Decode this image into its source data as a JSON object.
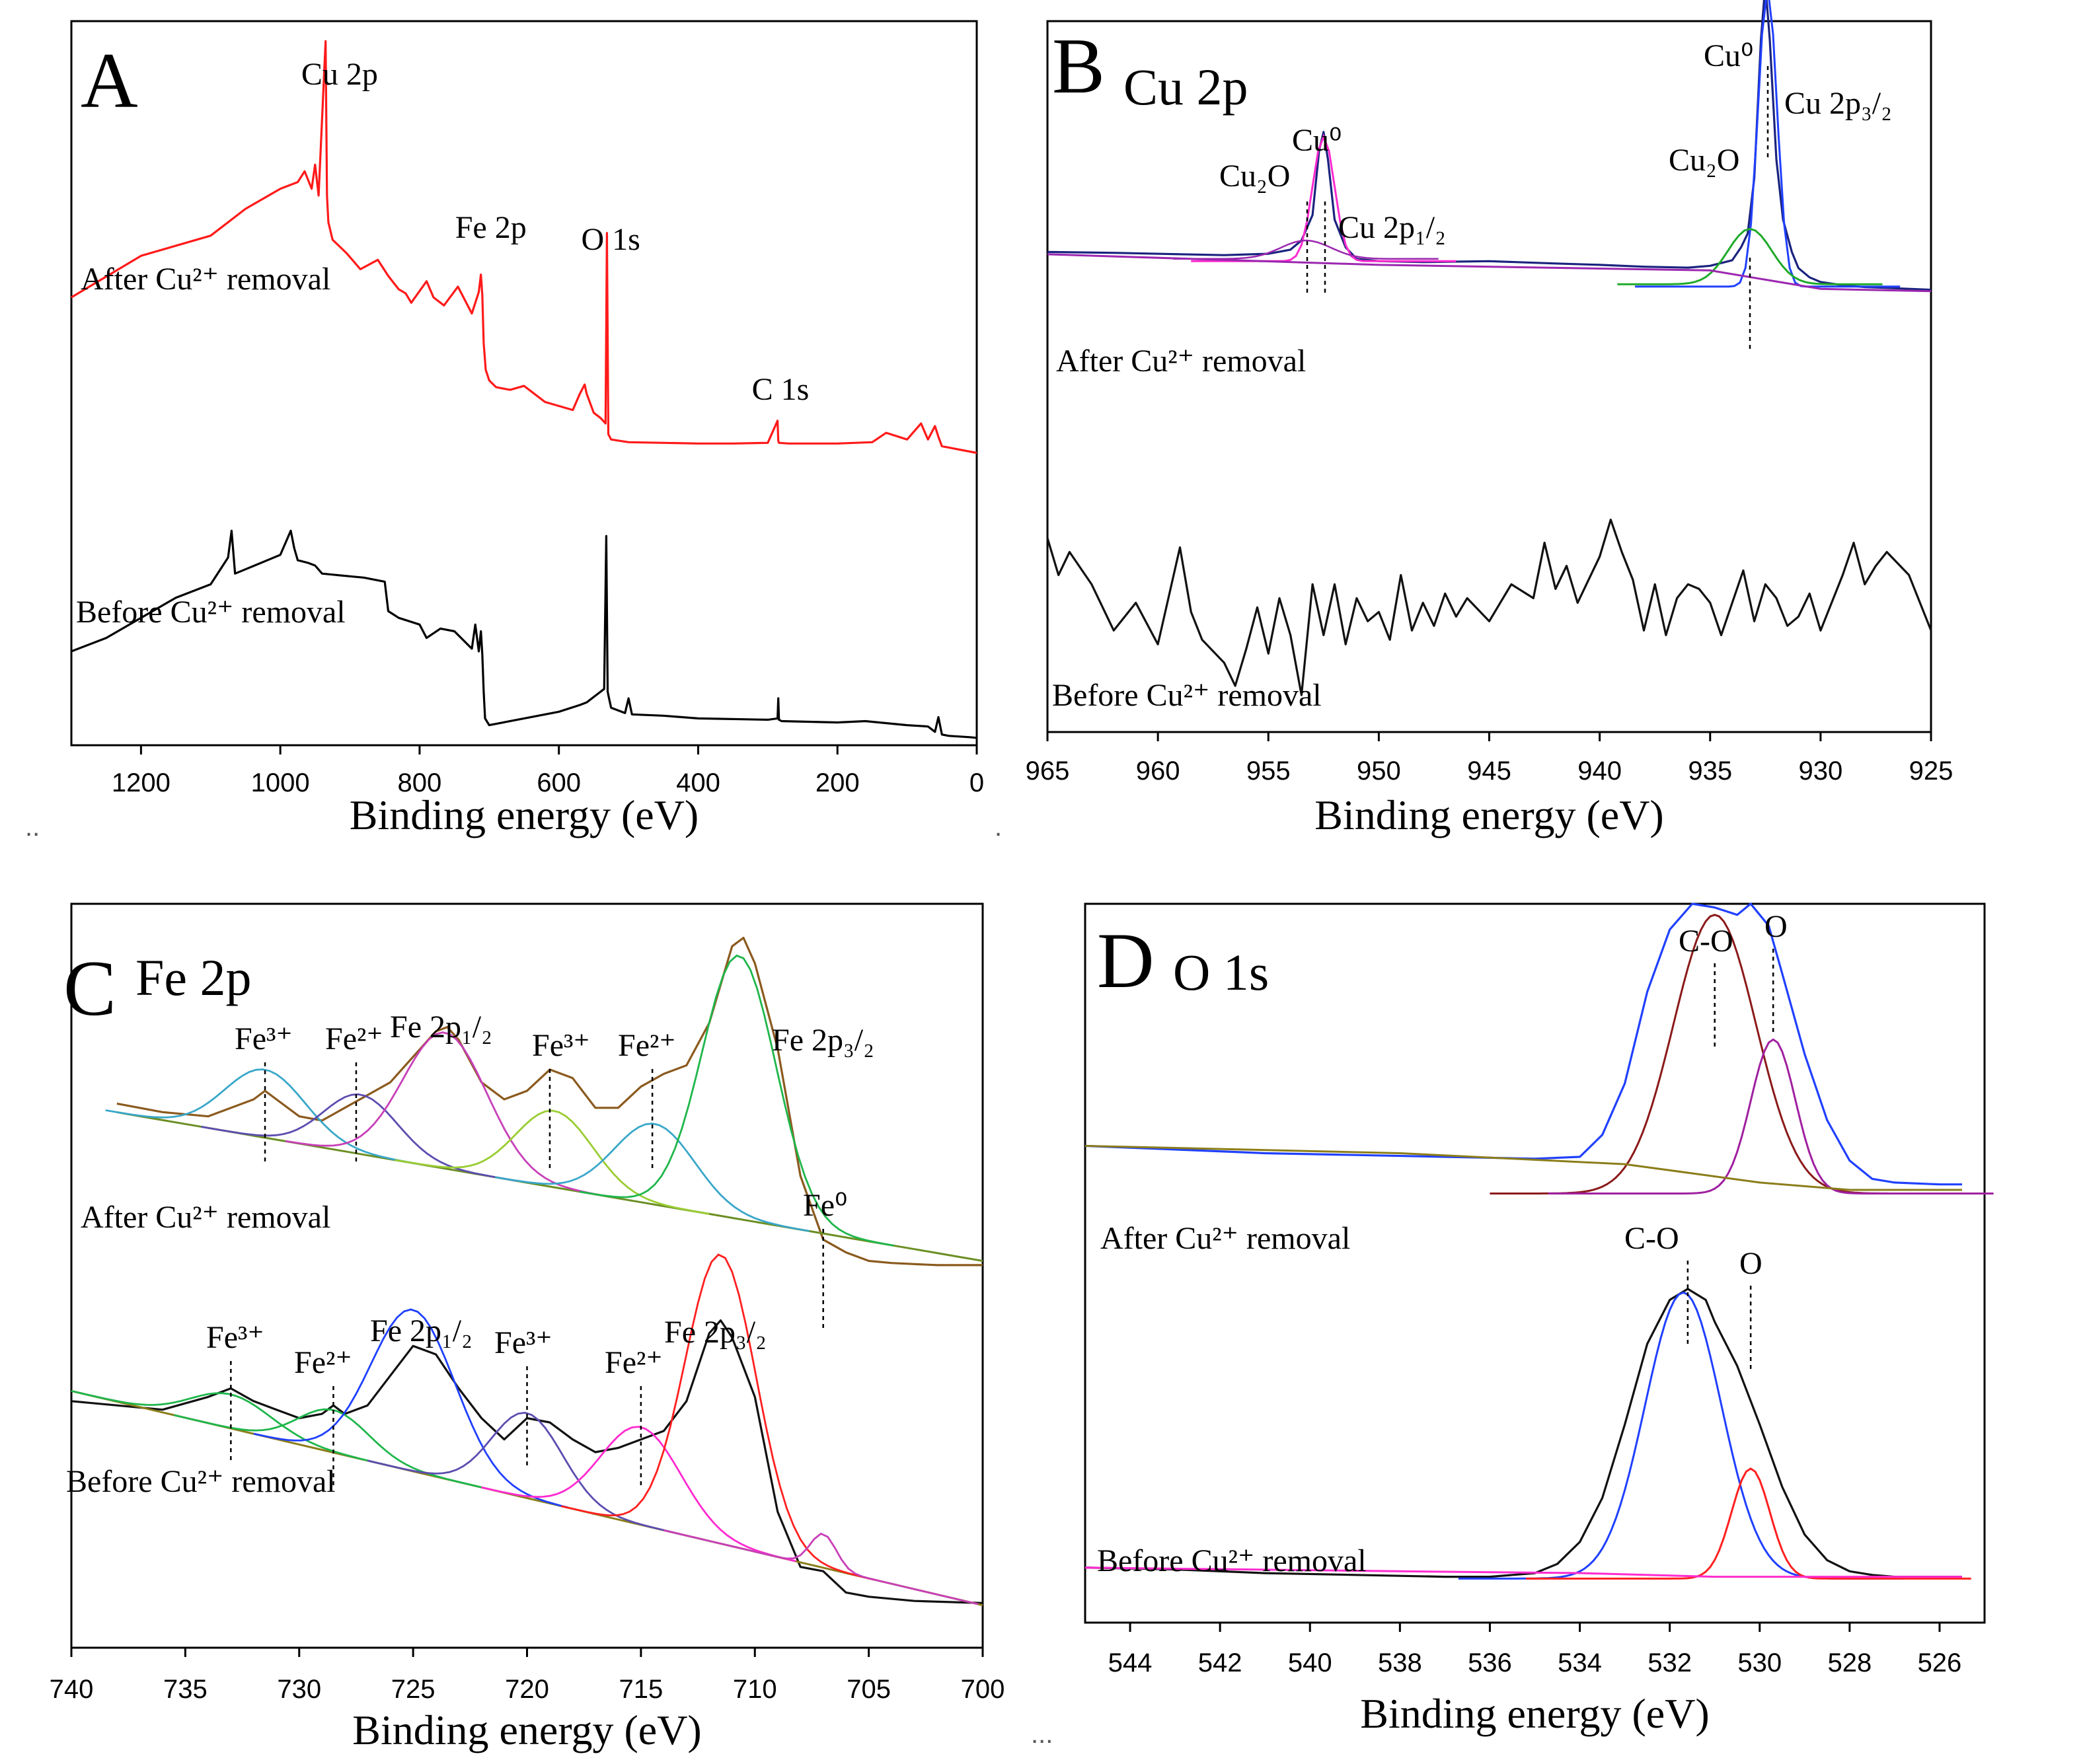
{
  "stray_marks": [
    "..",
    ".",
    "..."
  ],
  "chart_data": [
    {
      "panel": "A",
      "type": "line",
      "title": "",
      "xlabel": "Binding energy (eV)",
      "ylabel": "",
      "xlim": [
        1300,
        0
      ],
      "x_reversed": true,
      "xticks": [
        1200,
        1000,
        800,
        600,
        400,
        200,
        0
      ],
      "annotations": [
        {
          "text": "Cu 2p",
          "x": 932
        },
        {
          "text": "Fe 2p",
          "x": 711
        },
        {
          "text": "O 1s",
          "x": 530
        },
        {
          "text": "C 1s",
          "x": 285
        }
      ],
      "series": [
        {
          "name": "After Cu²⁺ removal",
          "color": "#ff1a1a",
          "x": [
            1300,
            1200,
            1100,
            1050,
            1000,
            975,
            965,
            955,
            950,
            945,
            935,
            933,
            931,
            925,
            905,
            885,
            860,
            845,
            830,
            820,
            812,
            790,
            780,
            765,
            745,
            725,
            715,
            712,
            710,
            708,
            705,
            700,
            690,
            670,
            650,
            640,
            620,
            600,
            580,
            570,
            563,
            560,
            550,
            540,
            533,
            531,
            529,
            525,
            500,
            450,
            400,
            350,
            300,
            286,
            285,
            284,
            270,
            200,
            150,
            130,
            100,
            80,
            70,
            60,
            55,
            50,
            40,
            20,
            10,
            0
          ],
          "y": [
            1540,
            1850,
            2000,
            2200,
            2350,
            2400,
            2480,
            2350,
            2530,
            2300,
            3450,
            2300,
            2100,
            1970,
            1870,
            1750,
            1820,
            1700,
            1600,
            1570,
            1500,
            1660,
            1540,
            1480,
            1620,
            1420,
            1580,
            1710,
            1560,
            1200,
            1000,
            920,
            870,
            850,
            880,
            840,
            760,
            730,
            700,
            820,
            890,
            820,
            680,
            640,
            600,
            2020,
            520,
            480,
            460,
            455,
            450,
            450,
            455,
            620,
            470,
            455,
            450,
            450,
            460,
            530,
            480,
            600,
            480,
            580,
            500,
            430,
            420,
            400,
            390,
            380
          ]
        },
        {
          "name": "Before Cu²⁺ removal",
          "color": "#000000",
          "x": [
            1300,
            1250,
            1150,
            1100,
            1075,
            1070,
            1065,
            1000,
            985,
            980,
            975,
            960,
            950,
            940,
            900,
            880,
            850,
            845,
            830,
            800,
            790,
            770,
            750,
            725,
            720,
            715,
            712,
            710,
            708,
            706,
            700,
            650,
            600,
            570,
            560,
            545,
            535,
            532,
            530,
            528,
            525,
            505,
            500,
            495,
            450,
            400,
            300,
            286,
            285,
            284,
            280,
            200,
            160,
            100,
            70,
            60,
            55,
            50,
            40,
            10,
            0
          ],
          "y": [
            -1100,
            -1000,
            -700,
            -600,
            -400,
            -200,
            -520,
            -380,
            -200,
            -330,
            -420,
            -440,
            -460,
            -520,
            -540,
            -550,
            -580,
            -800,
            -850,
            -900,
            -1000,
            -930,
            -950,
            -1080,
            -900,
            -1100,
            -950,
            -1120,
            -1400,
            -1600,
            -1650,
            -1600,
            -1550,
            -1500,
            -1480,
            -1420,
            -1380,
            -240,
            -1400,
            -1450,
            -1520,
            -1560,
            -1450,
            -1570,
            -1580,
            -1600,
            -1610,
            -1600,
            -1450,
            -1610,
            -1620,
            -1630,
            -1620,
            -1650,
            -1660,
            -1700,
            -1590,
            -1720,
            -1730,
            -1740,
            -1745
          ]
        }
      ]
    },
    {
      "panel": "B",
      "type": "line",
      "title": "Cu 2p",
      "xlabel": "Binding energy (eV)",
      "ylabel": "",
      "xlim": [
        965,
        925
      ],
      "x_reversed": true,
      "xticks": [
        965,
        960,
        955,
        950,
        945,
        940,
        935,
        930,
        925
      ],
      "annotations": [
        {
          "text": "Cu₂O",
          "x": 953.4
        },
        {
          "text": "Cu⁰",
          "x": 952.5
        },
        {
          "text": "Cu 2p₁/₂",
          "x": 951
        },
        {
          "text": "Cu₂O",
          "x": 933.4
        },
        {
          "text": "Cu⁰",
          "x": 932.4
        },
        {
          "text": "Cu 2p₃/₂",
          "x": 931
        }
      ],
      "series": [
        {
          "name": "After Cu²⁺ removal",
          "color": "#1a237e",
          "x": [
            965,
            962,
            959,
            957,
            955,
            954,
            953.5,
            953,
            952.7,
            952.5,
            952.3,
            952,
            951.5,
            951,
            950,
            948,
            945,
            942,
            940,
            938,
            936,
            935,
            934,
            933.6,
            933.3,
            933,
            932.7,
            932.5,
            932.3,
            932,
            931.7,
            931.3,
            931,
            930.5,
            930,
            929,
            928,
            927,
            926,
            925
          ],
          "y": [
            100,
            98,
            95,
            93,
            96,
            105,
            125,
            180,
            320,
            360,
            300,
            170,
            110,
            85,
            80,
            78,
            80,
            75,
            72,
            68,
            66,
            70,
            82,
            110,
            140,
            260,
            560,
            680,
            560,
            300,
            170,
            100,
            65,
            45,
            35,
            28,
            24,
            22,
            20,
            18
          ]
        },
        {
          "name": "Before Cu²⁺ removal",
          "color": "#111111",
          "x": [
            965,
            964.5,
            964,
            963,
            962,
            961,
            960,
            959,
            958.5,
            958,
            957,
            956.5,
            956,
            955.5,
            955,
            954.5,
            954,
            953.5,
            953,
            952.5,
            952,
            951.5,
            951,
            950.5,
            950,
            949.5,
            949,
            948.5,
            948,
            947.5,
            947,
            946.5,
            946,
            945,
            944,
            943,
            942.5,
            942,
            941.5,
            941,
            940,
            939.5,
            939,
            938.5,
            938,
            937.5,
            937,
            936.5,
            936,
            935.5,
            935,
            934.5,
            934,
            933.5,
            933,
            932.5,
            932,
            931.5,
            931,
            930.5,
            930,
            929,
            928.5,
            928,
            927.5,
            927,
            926,
            925
          ],
          "y": [
            -220,
            -300,
            -250,
            -320,
            -420,
            -360,
            -450,
            -240,
            -380,
            -440,
            -490,
            -540,
            -460,
            -370,
            -470,
            -350,
            -430,
            -560,
            -320,
            -430,
            -320,
            -450,
            -350,
            -400,
            -380,
            -440,
            -300,
            -420,
            -360,
            -410,
            -340,
            -390,
            -350,
            -400,
            -320,
            -350,
            -230,
            -330,
            -280,
            -360,
            -260,
            -180,
            -250,
            -310,
            -420,
            -320,
            -430,
            -350,
            -320,
            -330,
            -360,
            -430,
            -360,
            -290,
            -400,
            -320,
            -350,
            -410,
            -390,
            -340,
            -420,
            -300,
            -230,
            -320,
            -280,
            -250,
            -300,
            -420
          ]
        },
        {
          "name": "Cu⁰ 2p₃/₂ fit",
          "color": "#2040ff",
          "role": "fit"
        },
        {
          "name": "Cu₂O fit",
          "color": "#1faa2a",
          "role": "fit"
        },
        {
          "name": "Cu 2p₁/₂ fit",
          "color": "#ff2bd0",
          "role": "fit"
        },
        {
          "name": "Background",
          "color": "#9c27b0",
          "role": "fit"
        }
      ]
    },
    {
      "panel": "C",
      "type": "line",
      "title": "Fe 2p",
      "xlabel": "Binding energy (eV)",
      "ylabel": "",
      "xlim": [
        740,
        700
      ],
      "x_reversed": true,
      "xticks": [
        740,
        735,
        730,
        725,
        720,
        715,
        710,
        705,
        700
      ],
      "annotations": [
        {
          "group": "after",
          "text": "Fe³⁺",
          "x": 731.5
        },
        {
          "group": "after",
          "text": "Fe²⁺",
          "x": 727.5
        },
        {
          "group": "after",
          "text": "Fe 2p₁/₂",
          "x": 723.5
        },
        {
          "group": "after",
          "text": "Fe³⁺",
          "x": 719
        },
        {
          "group": "after",
          "text": "Fe²⁺",
          "x": 714.5
        },
        {
          "group": "after",
          "text": "Fe 2p₃/₂",
          "x": 710.5
        },
        {
          "group": "after",
          "text": "Fe⁰",
          "x": 707
        },
        {
          "group": "before",
          "text": "Fe³⁺",
          "x": 733
        },
        {
          "group": "before",
          "text": "Fe²⁺",
          "x": 728.5
        },
        {
          "group": "before",
          "text": "Fe 2p₁/₂",
          "x": 725
        },
        {
          "group": "before",
          "text": "Fe³⁺",
          "x": 720
        },
        {
          "group": "before",
          "text": "Fe²⁺",
          "x": 715
        },
        {
          "group": "before",
          "text": "Fe 2p₃/₂",
          "x": 711.5
        }
      ],
      "series": [
        {
          "name": "After Cu²⁺ removal",
          "color": "#8b5a1e",
          "x": [
            738,
            736,
            734,
            732,
            731.5,
            731,
            730,
            729,
            728,
            727,
            726,
            725,
            724,
            723.5,
            723,
            722,
            721,
            720,
            719,
            718,
            717,
            716,
            715,
            714,
            713,
            712,
            711,
            710.5,
            710,
            709,
            708,
            707,
            706,
            705,
            704,
            702,
            700
          ],
          "y": [
            1430,
            1410,
            1400,
            1440,
            1460,
            1440,
            1400,
            1390,
            1420,
            1450,
            1480,
            1540,
            1600,
            1610,
            1580,
            1480,
            1440,
            1460,
            1510,
            1490,
            1420,
            1420,
            1470,
            1500,
            1520,
            1620,
            1800,
            1820,
            1760,
            1560,
            1260,
            1110,
            1080,
            1060,
            1055,
            1050,
            1050
          ]
        },
        {
          "name": "Before Cu²⁺ removal",
          "color": "#111111",
          "x": [
            740,
            738,
            736,
            734,
            733,
            732,
            731,
            730,
            729,
            728.5,
            728,
            727,
            726,
            725,
            724,
            723,
            722,
            721,
            720,
            719,
            718,
            717,
            716,
            715,
            714,
            713,
            712,
            711.5,
            711,
            710,
            709,
            708,
            707,
            706,
            705,
            703,
            700
          ],
          "y": [
            730,
            720,
            710,
            740,
            760,
            730,
            710,
            690,
            700,
            720,
            700,
            720,
            790,
            860,
            840,
            760,
            690,
            640,
            690,
            680,
            640,
            610,
            620,
            640,
            660,
            730,
            890,
            920,
            880,
            740,
            470,
            340,
            330,
            280,
            270,
            260,
            255
          ]
        },
        {
          "name": "Fe³⁺ fit",
          "color": "#3aa7c9",
          "role": "fit"
        },
        {
          "name": "Fe²⁺ fit",
          "color": "#5c4db0",
          "role": "fit"
        },
        {
          "name": "Fe 2p₁/₂ fit",
          "color": "#c83fb8",
          "role": "fit"
        },
        {
          "name": "Fe 2p₃/₂ fit",
          "color": "#1fb64b",
          "role": "fit"
        },
        {
          "name": "Background",
          "color": "#6b8e23",
          "role": "fit"
        }
      ]
    },
    {
      "panel": "D",
      "type": "line",
      "title": "O 1s",
      "xlabel": "Binding energy (eV)",
      "ylabel": "",
      "xlim": [
        545,
        525
      ],
      "x_reversed": true,
      "xticks": [
        544,
        542,
        540,
        538,
        536,
        534,
        532,
        530,
        528,
        526
      ],
      "annotations": [
        {
          "group": "after",
          "text": "C-O",
          "x": 531
        },
        {
          "group": "after",
          "text": "O",
          "x": 529.7
        },
        {
          "group": "before",
          "text": "C-O",
          "x": 531.6
        },
        {
          "group": "before",
          "text": "O",
          "x": 530.2
        }
      ],
      "series": [
        {
          "name": "After Cu²⁺ removal",
          "color": "#2040ff",
          "x": [
            545,
            543,
            541,
            539,
            537,
            535,
            534,
            533.5,
            533,
            532.5,
            532,
            531.5,
            531,
            530.5,
            530.2,
            530,
            529.8,
            529.5,
            529,
            528.5,
            528,
            527.5,
            527,
            526,
            525.5
          ],
          "y": [
            130,
            120,
            110,
            105,
            100,
            95,
            100,
            160,
            300,
            550,
            720,
            790,
            780,
            760,
            790,
            760,
            730,
            600,
            380,
            200,
            90,
            40,
            30,
            25,
            25
          ]
        },
        {
          "name": "Before Cu²⁺ removal",
          "color": "#111111",
          "x": [
            545,
            543,
            541,
            539,
            537,
            536,
            535,
            534.5,
            534,
            533.5,
            533,
            532.5,
            532,
            531.6,
            531.2,
            531,
            530.5,
            530,
            529.5,
            529,
            528.5,
            528,
            527.5,
            527,
            526,
            525.5
          ],
          "y": [
            30,
            25,
            15,
            10,
            5,
            5,
            15,
            40,
            100,
            220,
            420,
            640,
            760,
            790,
            760,
            700,
            580,
            420,
            250,
            120,
            50,
            20,
            10,
            5,
            5,
            5
          ]
        },
        {
          "name": "C-O fit",
          "color": "#8b1a1a",
          "role": "fit"
        },
        {
          "name": "O fit",
          "color": "#a020a0",
          "role": "fit"
        },
        {
          "name": "Background",
          "color": "#8b7d1a",
          "role": "fit"
        }
      ]
    }
  ],
  "labels": {
    "A": {
      "letter": "A",
      "after": "After Cu²⁺ removal",
      "before": "Before Cu²⁺ removal"
    },
    "B": {
      "letter": "B",
      "after": "After Cu²⁺ removal",
      "before": "Before Cu²⁺ removal"
    },
    "C": {
      "letter": "C",
      "after": "After Cu²⁺ removal",
      "before": "Before Cu²⁺ removal"
    },
    "D": {
      "letter": "D",
      "after": "After Cu²⁺ removal",
      "before": "Before Cu²⁺ removal"
    }
  }
}
